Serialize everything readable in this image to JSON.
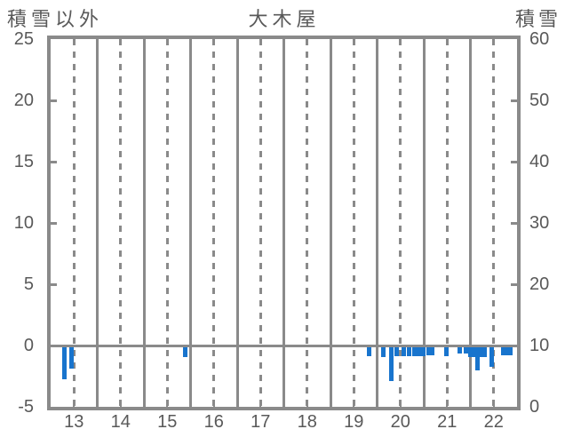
{
  "titles": {
    "left": "積雪以外",
    "center": "大木屋",
    "right": "積雪"
  },
  "colors": {
    "bar": "#1874cd",
    "grid": "#8a8a8a",
    "border": "#8a8a8a",
    "text": "#595959",
    "background": "#ffffff"
  },
  "chart_data": {
    "type": "bar",
    "title": "大木屋",
    "left_axis": {
      "label": "積雪以外",
      "ticks": [
        25,
        20,
        15,
        10,
        5,
        0,
        -5
      ],
      "range": [
        -5,
        25
      ],
      "zero_line": 0
    },
    "right_axis": {
      "label": "積雪",
      "ticks": [
        60,
        50,
        40,
        30,
        20,
        10,
        0
      ],
      "range": [
        0,
        60
      ]
    },
    "x_axis": {
      "tick_labels": [
        13,
        14,
        15,
        16,
        17,
        18,
        19,
        20,
        21,
        22
      ],
      "range": [
        12.5,
        22.5
      ],
      "dashed_gridlines_at": [
        13,
        14,
        15,
        16,
        17,
        18,
        19,
        20,
        21,
        22
      ],
      "solid_gridlines_at": [
        13.5,
        14.5,
        15.5,
        16.5,
        17.5,
        18.5,
        19.5,
        20.5,
        21.5
      ],
      "minor_tick_step": 0.5
    },
    "grid": "vertical-only",
    "legend_position": "none",
    "series": [
      {
        "name": "積雪以外",
        "axis": "left",
        "color": "#1874cd",
        "bar_width_hours": 0.083,
        "points": [
          [
            12.79,
            -2.8
          ],
          [
            12.94,
            -1.9
          ],
          [
            15.39,
            -1.0
          ],
          [
            19.33,
            -0.9
          ],
          [
            19.63,
            -1.0
          ],
          [
            19.8,
            -2.9
          ],
          [
            19.91,
            -0.9
          ],
          [
            20.08,
            -0.9
          ],
          [
            20.19,
            -0.9
          ],
          [
            20.3,
            -0.9
          ],
          [
            20.4,
            -0.9
          ],
          [
            20.49,
            -0.9
          ],
          [
            20.6,
            -0.8
          ],
          [
            20.68,
            -0.8
          ],
          [
            20.99,
            -0.9
          ],
          [
            21.27,
            -0.7
          ],
          [
            21.4,
            -0.7
          ],
          [
            21.5,
            -1.0
          ],
          [
            21.58,
            -1.0
          ],
          [
            21.645,
            -2.1
          ],
          [
            21.72,
            -1.0
          ],
          [
            21.8,
            -1.0
          ],
          [
            21.95,
            -1.8
          ],
          [
            22.2,
            -0.8
          ],
          [
            22.28,
            -0.8
          ],
          [
            22.35,
            -0.8
          ]
        ]
      }
    ]
  }
}
